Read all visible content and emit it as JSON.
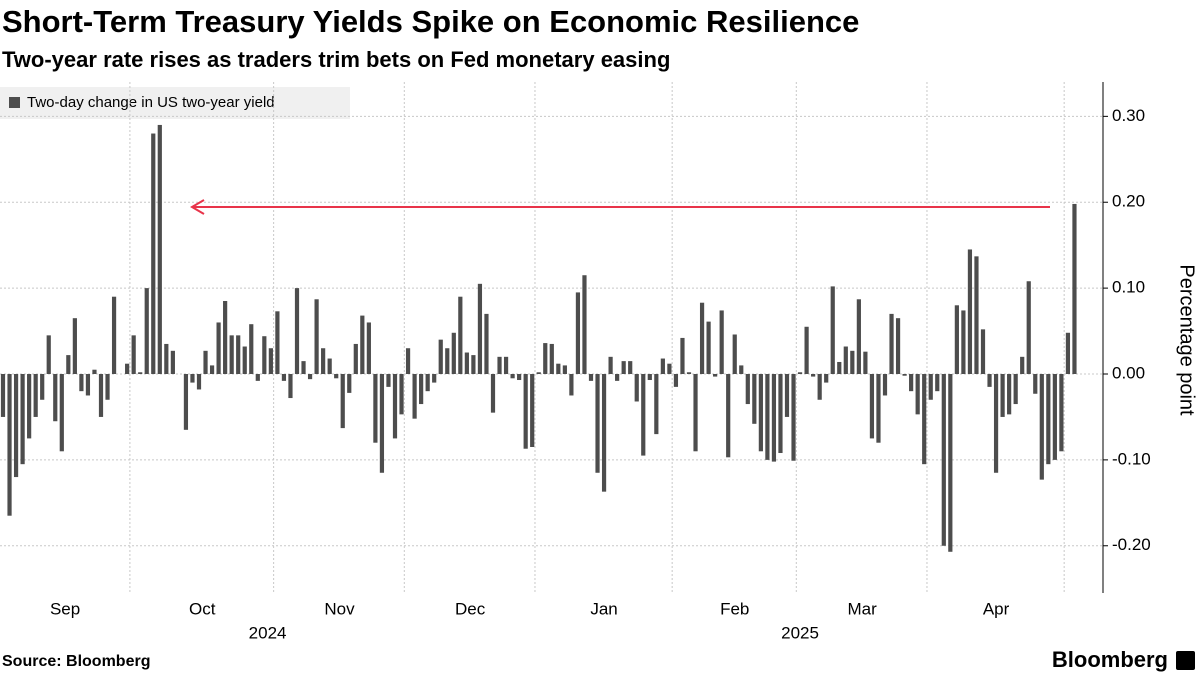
{
  "chart_data": {
    "type": "bar",
    "title": "Short-Term Treasury Yields Spike on Economic Resilience",
    "subtitle": "Two-year rate rises as traders trim bets on Fed monetary easing",
    "series": [
      {
        "name": "Two-day change in US two-year yield",
        "color": "#4d4d4d"
      }
    ],
    "y_label": "Percentage point",
    "source": "Source: Bloomberg",
    "brand": "Bloomberg",
    "ylim": [
      -0.255,
      0.34
    ],
    "yticks": [
      {
        "value": 0.3,
        "label": "0.30"
      },
      {
        "value": 0.2,
        "label": "0.20"
      },
      {
        "value": 0.1,
        "label": "0.10"
      },
      {
        "value": 0,
        "label": "0.00"
      },
      {
        "value": -0.1,
        "label": "-0.10"
      },
      {
        "value": -0.2,
        "label": "-0.20"
      }
    ],
    "grid": true,
    "years": [
      {
        "label": "2024",
        "months": [
          {
            "label": "Sep",
            "values": [
              -0.05,
              -0.165,
              -0.12,
              -0.105,
              -0.075,
              -0.05,
              -0.03,
              0.045,
              -0.055,
              -0.09,
              0.022,
              0.065,
              -0.02,
              -0.025,
              0.005,
              -0.05,
              -0.03,
              0.09,
              0.0,
              0.012
            ]
          },
          {
            "label": "Oct",
            "values": [
              0.045,
              0.002,
              0.1,
              0.28,
              0.29,
              0.035,
              0.027,
              0.0,
              -0.065,
              -0.01,
              -0.018,
              0.027,
              0.01,
              0.06,
              0.085,
              0.045,
              0.045,
              0.032,
              0.058,
              -0.008,
              0.044,
              0.03
            ]
          },
          {
            "label": "Nov",
            "values": [
              0.073,
              -0.008,
              -0.028,
              0.1,
              0.015,
              -0.006,
              0.087,
              0.03,
              0.018,
              -0.005,
              -0.063,
              -0.022,
              0.035,
              0.068,
              0.06,
              -0.08,
              -0.115,
              -0.015,
              -0.075,
              -0.047
            ]
          },
          {
            "label": "Dec",
            "values": [
              0.03,
              -0.052,
              -0.035,
              -0.02,
              -0.01,
              0.04,
              0.03,
              0.048,
              0.09,
              0.025,
              0.022,
              0.105,
              0.07,
              -0.045,
              0.02,
              0.02,
              -0.005,
              -0.007,
              -0.087,
              -0.085
            ]
          }
        ]
      },
      {
        "label": "2025",
        "months": [
          {
            "label": "Jan",
            "values": [
              0.002,
              0.036,
              0.035,
              0.012,
              0.01,
              -0.025,
              0.095,
              0.115,
              -0.008,
              -0.115,
              -0.137,
              0.02,
              -0.008,
              0.015,
              0.015,
              -0.032,
              -0.095,
              -0.007,
              -0.07,
              0.018,
              0.012
            ]
          },
          {
            "label": "Feb",
            "values": [
              -0.015,
              0.042,
              0.002,
              -0.09,
              0.083,
              0.061,
              -0.003,
              0.074,
              -0.097,
              0.046,
              0.01,
              -0.035,
              -0.058,
              -0.09,
              -0.1,
              -0.102,
              -0.092,
              -0.05,
              -0.101
            ]
          },
          {
            "label": "Mar",
            "values": [
              0.002,
              0.055,
              -0.003,
              -0.03,
              -0.01,
              0.102,
              0.014,
              0.032,
              0.027,
              0.087,
              0.026,
              -0.075,
              -0.08,
              -0.025,
              0.07,
              0.065,
              -0.002,
              -0.02,
              -0.047,
              -0.105
            ]
          },
          {
            "label": "Apr",
            "values": [
              -0.03,
              -0.02,
              -0.2,
              -0.207,
              0.08,
              0.074,
              0.145,
              0.137,
              0.052,
              -0.015,
              -0.115,
              -0.05,
              -0.047,
              -0.035,
              0.02,
              0.108,
              -0.023,
              -0.123,
              -0.105,
              -0.1,
              -0.09
            ]
          },
          {
            "label": null,
            "values": [
              0.048,
              0.198
            ]
          }
        ]
      }
    ]
  }
}
